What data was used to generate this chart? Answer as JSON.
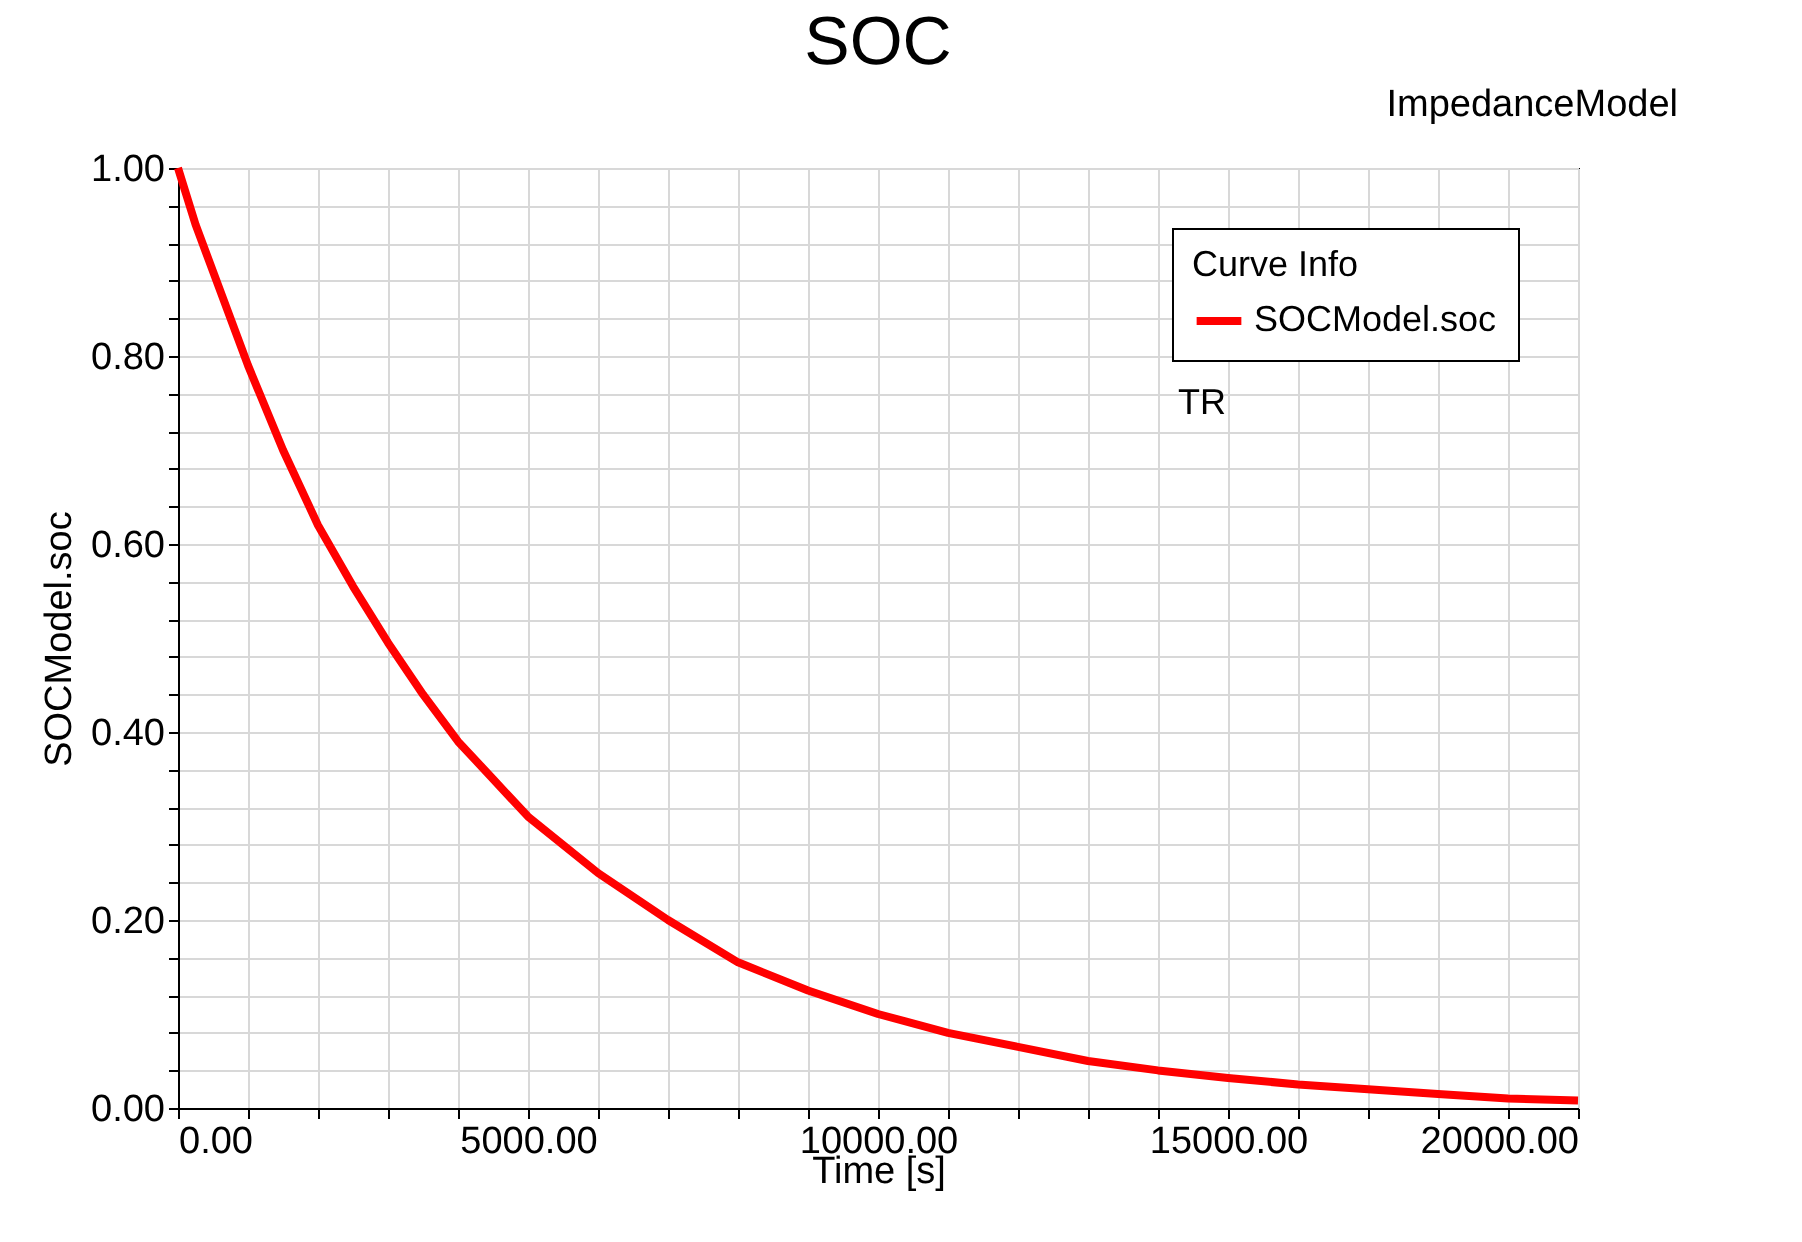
{
  "chart_data": {
    "type": "line",
    "title": "SOC",
    "subtitle": "ImpedanceModel",
    "xlabel": "Time [s]",
    "ylabel": "SOCModel.soc",
    "legend_title": "Curve Info",
    "legend": "top right",
    "grid": true,
    "marker": "none",
    "line_style": "solid",
    "annotations": [
      "TR"
    ],
    "x": [
      0,
      250,
      500,
      1000,
      1500,
      2000,
      2500,
      3000,
      3500,
      4000,
      4500,
      5000,
      6000,
      7000,
      8000,
      9000,
      10000,
      11000,
      12000,
      13000,
      14000,
      15000,
      16000,
      17000,
      18000,
      19000,
      20000
    ],
    "series": [
      {
        "name": "SOCModel.soc",
        "color": "#ff0000",
        "values": [
          1.0,
          0.94,
          0.89,
          0.79,
          0.7,
          0.62,
          0.555,
          0.495,
          0.44,
          0.39,
          0.35,
          0.31,
          0.25,
          0.2,
          0.155,
          0.125,
          0.1,
          0.08,
          0.065,
          0.05,
          0.04,
          0.032,
          0.025,
          0.02,
          0.015,
          0.01,
          0.008
        ]
      }
    ],
    "xlim": [
      0,
      20000
    ],
    "ylim": [
      0,
      1
    ],
    "xticks": [
      {
        "value": 0,
        "label": "0.00"
      },
      {
        "value": 1000,
        "label": null
      },
      {
        "value": 2000,
        "label": null
      },
      {
        "value": 3000,
        "label": null
      },
      {
        "value": 4000,
        "label": null
      },
      {
        "value": 5000,
        "label": "5000.00"
      },
      {
        "value": 6000,
        "label": null
      },
      {
        "value": 7000,
        "label": null
      },
      {
        "value": 8000,
        "label": null
      },
      {
        "value": 9000,
        "label": null
      },
      {
        "value": 10000,
        "label": "10000.00"
      },
      {
        "value": 11000,
        "label": null
      },
      {
        "value": 12000,
        "label": null
      },
      {
        "value": 13000,
        "label": null
      },
      {
        "value": 14000,
        "label": null
      },
      {
        "value": 15000,
        "label": "15000.00"
      },
      {
        "value": 16000,
        "label": null
      },
      {
        "value": 17000,
        "label": null
      },
      {
        "value": 18000,
        "label": null
      },
      {
        "value": 19000,
        "label": null
      },
      {
        "value": 20000,
        "label": "20000.00"
      }
    ],
    "yticks": [
      {
        "value": 0,
        "label": "0.00"
      },
      {
        "value": 0.04,
        "label": null
      },
      {
        "value": 0.08,
        "label": null
      },
      {
        "value": 0.12,
        "label": null
      },
      {
        "value": 0.16,
        "label": null
      },
      {
        "value": 0.2,
        "label": "0.20"
      },
      {
        "value": 0.24,
        "label": null
      },
      {
        "value": 0.28,
        "label": null
      },
      {
        "value": 0.32,
        "label": null
      },
      {
        "value": 0.36,
        "label": null
      },
      {
        "value": 0.4,
        "label": "0.40"
      },
      {
        "value": 0.44,
        "label": null
      },
      {
        "value": 0.48,
        "label": null
      },
      {
        "value": 0.52,
        "label": null
      },
      {
        "value": 0.56,
        "label": null
      },
      {
        "value": 0.6,
        "label": "0.60"
      },
      {
        "value": 0.64,
        "label": null
      },
      {
        "value": 0.68,
        "label": null
      },
      {
        "value": 0.72,
        "label": null
      },
      {
        "value": 0.76,
        "label": null
      },
      {
        "value": 0.8,
        "label": "0.80"
      },
      {
        "value": 0.84,
        "label": null
      },
      {
        "value": 0.88,
        "label": null
      },
      {
        "value": 0.92,
        "label": null
      },
      {
        "value": 0.96,
        "label": null
      },
      {
        "value": 1,
        "label": "1.00"
      }
    ]
  }
}
